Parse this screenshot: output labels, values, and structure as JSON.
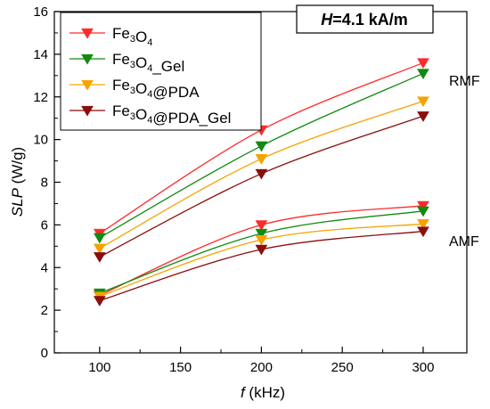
{
  "chart_data": {
    "type": "line",
    "xlabel_var": "f",
    "xlabel_unit": " (kHz)",
    "ylabel_var": "SLP",
    "ylabel_unit": " (W/g)",
    "xlim": [
      72,
      327
    ],
    "ylim": [
      0,
      16
    ],
    "xticks": [
      100,
      150,
      200,
      250,
      300
    ],
    "yticks": [
      0,
      2,
      4,
      6,
      8,
      10,
      12,
      14,
      16
    ],
    "x": [
      100,
      200,
      300
    ],
    "field_label_var": "H",
    "field_label_value": "=4.1 kA/m",
    "annotations": {
      "rmf": "RMF",
      "amf": "AMF"
    },
    "legend_placement": "top-left",
    "grid": false,
    "series": [
      {
        "name": "Fe3O4",
        "mode": "RMF",
        "color": "#ff2a2a",
        "values": [
          5.6,
          10.45,
          13.6
        ]
      },
      {
        "name": "Fe3O4_Gel",
        "mode": "RMF",
        "color": "#118a11",
        "values": [
          5.4,
          9.7,
          13.1
        ]
      },
      {
        "name": "Fe3O4@PDA",
        "mode": "RMF",
        "color": "#f5a300",
        "values": [
          4.9,
          9.1,
          11.8
        ]
      },
      {
        "name": "Fe3O4@PDA_Gel",
        "mode": "RMF",
        "color": "#8b0d0d",
        "values": [
          4.5,
          8.4,
          11.1
        ]
      },
      {
        "mode": "AMF",
        "color": "#ff2a2a",
        "values": [
          2.7,
          6.0,
          6.9
        ]
      },
      {
        "mode": "AMF",
        "color": "#118a11",
        "values": [
          2.8,
          5.6,
          6.65
        ]
      },
      {
        "mode": "AMF",
        "color": "#f5a300",
        "values": [
          2.65,
          5.3,
          6.05
        ]
      },
      {
        "mode": "AMF",
        "color": "#8b0d0d",
        "values": [
          2.45,
          4.85,
          5.7
        ]
      }
    ]
  }
}
